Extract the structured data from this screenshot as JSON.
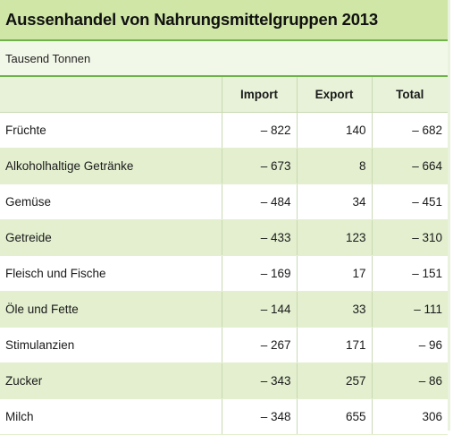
{
  "title": "Aussenhandel von Nahrungsmittelgruppen 2013",
  "unit": "Tausend Tonnen",
  "columns": [
    "Import",
    "Export",
    "Total"
  ],
  "rows": [
    {
      "label": "Früchte",
      "import": "– 822",
      "export": "140",
      "total": "– 682"
    },
    {
      "label": "Alkoholhaltige Getränke",
      "import": "– 673",
      "export": "8",
      "total": "– 664"
    },
    {
      "label": "Gemüse",
      "import": "– 484",
      "export": "34",
      "total": "– 451"
    },
    {
      "label": "Getreide",
      "import": "– 433",
      "export": "123",
      "total": "– 310"
    },
    {
      "label": "Fleisch und Fische",
      "import": "– 169",
      "export": "17",
      "total": "– 151"
    },
    {
      "label": "Öle und Fette",
      "import": "– 144",
      "export": "33",
      "total": "– 111"
    },
    {
      "label": "Stimulanzien",
      "import": "– 267",
      "export": "171",
      "total": "– 96"
    },
    {
      "label": "Zucker",
      "import": "– 343",
      "export": "257",
      "total": "– 86"
    },
    {
      "label": "Milch",
      "import": "– 348",
      "export": "655",
      "total": "306"
    }
  ],
  "colors": {
    "title_bg": "#cfe6a6",
    "accent_line": "#6fb24a",
    "stripe": "#e3efcf",
    "header_bg": "#e8f2d8"
  }
}
